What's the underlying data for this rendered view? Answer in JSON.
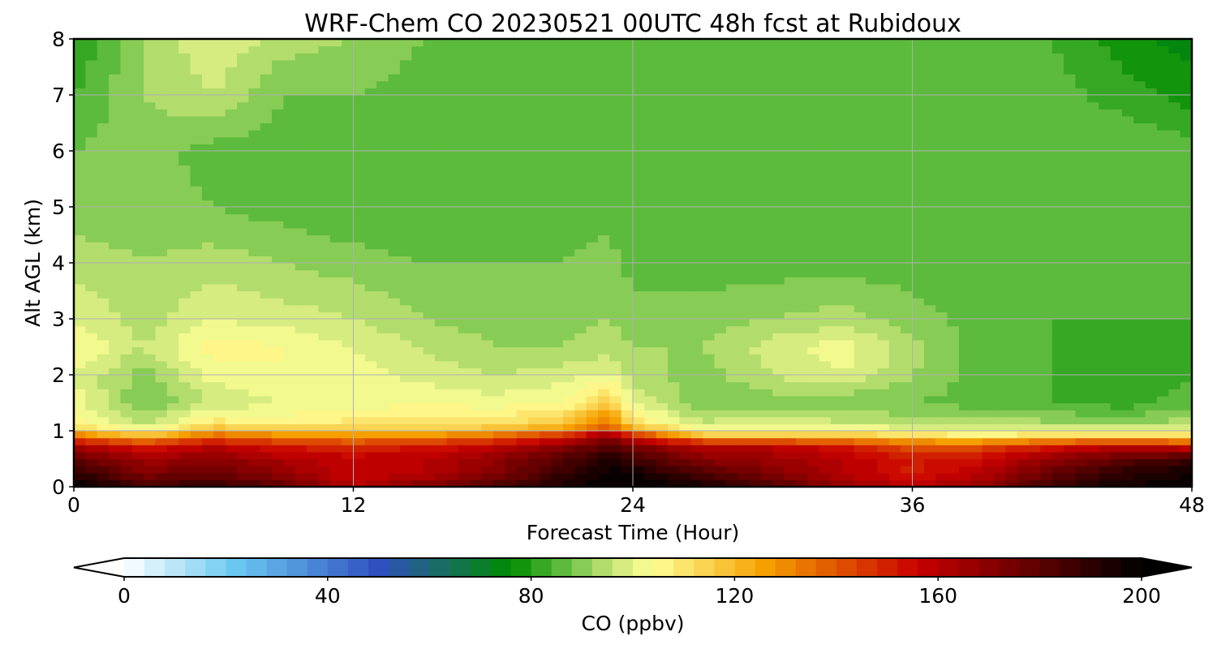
{
  "chart_data": {
    "type": "heatmap",
    "title": "WRF-Chem CO  20230521 00UTC 48h fcst at Rubidoux",
    "xlabel": "Forecast Time (Hour)",
    "ylabel": "Alt AGL (km)",
    "xlim": [
      0,
      48
    ],
    "ylim": [
      0,
      8
    ],
    "xticks": [
      "0",
      "12",
      "24",
      "36",
      "48"
    ],
    "yticks": [
      "0",
      "1",
      "2",
      "3",
      "4",
      "5",
      "6",
      "7",
      "8"
    ],
    "grid": true,
    "colorbar": {
      "label": "CO  (ppbv)",
      "range": [
        0,
        200
      ],
      "ticks": [
        "0",
        "40",
        "80",
        "120",
        "160",
        "200"
      ],
      "extend": "both",
      "colors": [
        "#ffffff",
        "#69c8f0",
        "#3050c0",
        "#008c00",
        "#5cba3c",
        "#c8e678",
        "#ffff96",
        "#f5a000",
        "#c80000",
        "#000000"
      ]
    },
    "x": [
      0,
      3,
      6,
      9,
      12,
      15,
      18,
      21,
      23,
      24,
      27,
      30,
      33,
      36,
      39,
      42,
      45,
      48
    ],
    "y": [
      0,
      0.25,
      0.5,
      0.75,
      0.9,
      1.1,
      1.5,
      2,
      2.5,
      3,
      4,
      5,
      6,
      7,
      8
    ],
    "z": [
      [
        200,
        185,
        190,
        178,
        160,
        172,
        182,
        194,
        200,
        200,
        196,
        182,
        168,
        158,
        168,
        188,
        196,
        200
      ],
      [
        190,
        172,
        176,
        168,
        155,
        160,
        170,
        188,
        198,
        196,
        182,
        172,
        160,
        150,
        160,
        178,
        190,
        196
      ],
      [
        180,
        165,
        170,
        162,
        158,
        160,
        168,
        182,
        194,
        186,
        170,
        166,
        160,
        152,
        155,
        168,
        180,
        186
      ],
      [
        160,
        150,
        158,
        150,
        148,
        150,
        156,
        168,
        182,
        172,
        160,
        158,
        152,
        140,
        140,
        150,
        158,
        150
      ],
      [
        135,
        120,
        138,
        132,
        128,
        130,
        136,
        150,
        170,
        150,
        120,
        118,
        118,
        112,
        110,
        112,
        115,
        112
      ],
      [
        108,
        95,
        112,
        108,
        110,
        110,
        112,
        118,
        135,
        112,
        98,
        100,
        98,
        96,
        95,
        94,
        92,
        95
      ],
      [
        102,
        88,
        96,
        100,
        102,
        104,
        102,
        104,
        118,
        100,
        88,
        90,
        88,
        88,
        86,
        84,
        82,
        86
      ],
      [
        100,
        90,
        102,
        104,
        102,
        98,
        96,
        98,
        100,
        94,
        90,
        96,
        100,
        92,
        86,
        84,
        80,
        84
      ],
      [
        104,
        96,
        106,
        104,
        100,
        96,
        92,
        92,
        94,
        92,
        92,
        98,
        102,
        94,
        86,
        84,
        82,
        84
      ],
      [
        100,
        94,
        100,
        98,
        96,
        92,
        90,
        90,
        92,
        90,
        90,
        92,
        94,
        90,
        86,
        84,
        84,
        84
      ],
      [
        94,
        92,
        94,
        92,
        90,
        88,
        88,
        88,
        90,
        86,
        86,
        86,
        86,
        86,
        84,
        84,
        84,
        84
      ],
      [
        90,
        90,
        88,
        86,
        84,
        84,
        84,
        86,
        86,
        84,
        84,
        84,
        84,
        85,
        86,
        84,
        86,
        86
      ],
      [
        88,
        90,
        86,
        86,
        84,
        84,
        84,
        84,
        84,
        84,
        84,
        84,
        84,
        85,
        88,
        86,
        88,
        86
      ],
      [
        84,
        92,
        96,
        88,
        88,
        86,
        88,
        86,
        86,
        86,
        86,
        86,
        86,
        86,
        86,
        86,
        82,
        78
      ],
      [
        80,
        92,
        100,
        94,
        92,
        88,
        88,
        86,
        86,
        86,
        86,
        88,
        86,
        86,
        84,
        84,
        78,
        74
      ]
    ]
  }
}
